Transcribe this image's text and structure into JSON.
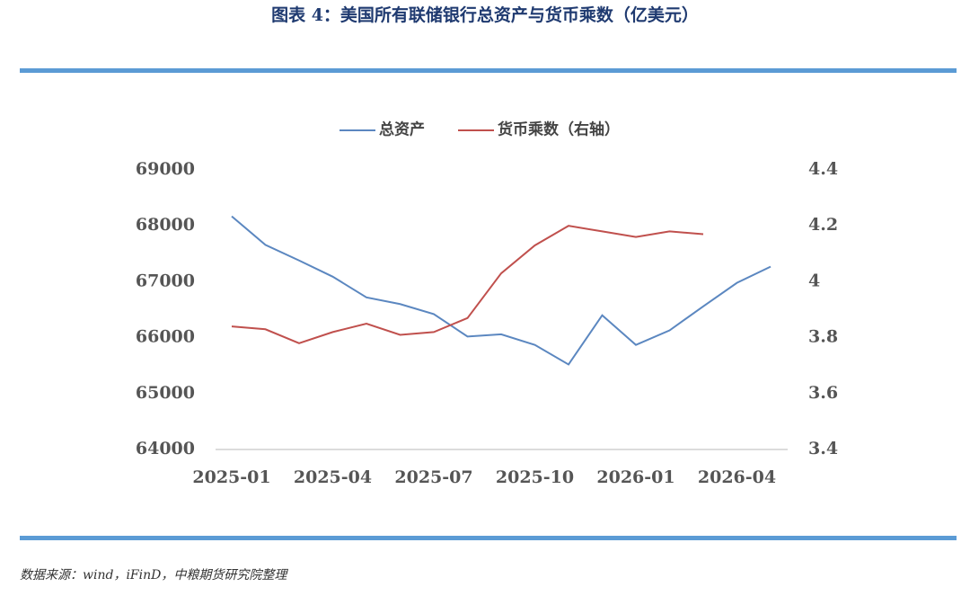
{
  "header": {
    "title": "图表 4：美国所有联储银行总资产与货币乘数（亿美元）"
  },
  "chart_data": {
    "type": "line",
    "categories": [
      "2025-01",
      null,
      null,
      "2025-04",
      null,
      null,
      "2025-07",
      null,
      null,
      "2025-10",
      null,
      null,
      "2026-01",
      null,
      null,
      "2026-04",
      null
    ],
    "series": [
      {
        "name": "总资产",
        "color": "#5b87c0",
        "values": [
          68170,
          67660,
          67380,
          67090,
          66720,
          66600,
          66420,
          66020,
          66060,
          65870,
          65520,
          66400,
          65870,
          66130,
          66560,
          66980,
          67270
        ]
      },
      {
        "name": "货币乘数（右轴）",
        "color": "#c0504d",
        "axis": "y2",
        "values": [
          3.84,
          3.83,
          3.78,
          3.82,
          3.85,
          3.81,
          3.82,
          3.87,
          4.03,
          4.13,
          4.2,
          4.18,
          4.16,
          4.18,
          4.17,
          null,
          null
        ]
      }
    ],
    "ylim": [
      64000,
      69000
    ],
    "yticks": [
      64000,
      65000,
      66000,
      67000,
      68000,
      69000
    ],
    "y2lim": [
      3.4,
      4.4
    ],
    "y2ticks": [
      3.4,
      3.6,
      3.8,
      4,
      4.2,
      4.4
    ],
    "legend": "top"
  },
  "footer": {
    "source": "数据来源：wind，iFinD，中粮期货研究院整理"
  }
}
